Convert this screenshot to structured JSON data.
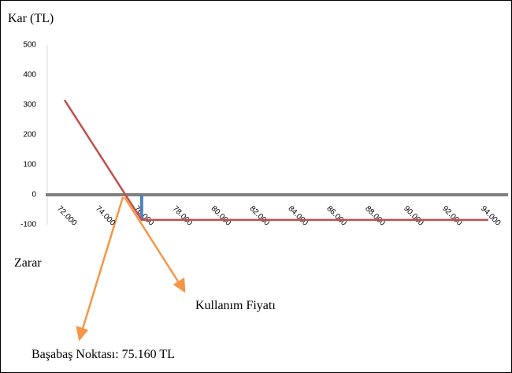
{
  "chart_data": {
    "type": "line",
    "y_label": "Kar (TL)",
    "annotations": [
      "Zarar",
      "Kullanım Fiyatı",
      "Başabaş Noktası: 75.160 TL"
    ],
    "x": [
      72,
      76,
      94
    ],
    "series": [
      {
        "color": "#c0504d",
        "values": [
          316,
          -84,
          -84
        ]
      }
    ],
    "markers": [
      {
        "x": 76,
        "from": 0,
        "to": -84,
        "color": "#4f81bd"
      }
    ],
    "xlim": [
      72,
      94
    ],
    "xticks": [
      {
        "value": 72,
        "label": "72.000"
      },
      {
        "value": 74,
        "label": "74.000"
      },
      {
        "value": 76,
        "label": "76.000"
      },
      {
        "value": 78,
        "label": "78.000"
      },
      {
        "value": 80,
        "label": "80.000"
      },
      {
        "value": 82,
        "label": "82.000"
      },
      {
        "value": 84,
        "label": "84.000"
      },
      {
        "value": 86,
        "label": "86.000"
      },
      {
        "value": 88,
        "label": "88.000"
      },
      {
        "value": 90,
        "label": "90.000"
      },
      {
        "value": 92,
        "label": "92.000"
      },
      {
        "value": 94,
        "label": "94.000"
      }
    ],
    "ylim": [
      -100,
      500
    ],
    "yticks": [
      -100,
      0,
      100,
      200,
      300,
      400,
      500
    ]
  }
}
